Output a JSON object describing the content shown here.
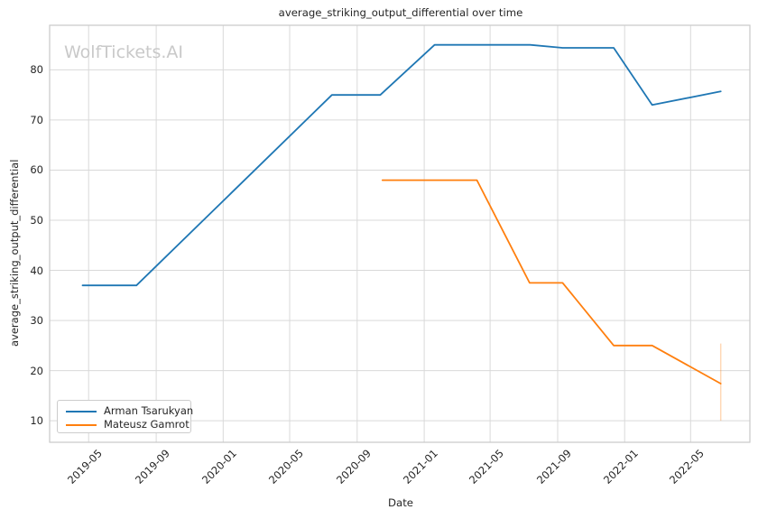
{
  "watermark": {
    "text": "WolfTickets.AI",
    "color": "#c9c9c9"
  },
  "chart_data": {
    "type": "line",
    "title": "average_striking_output_differential over time",
    "xlabel": "Date",
    "ylabel": "average_striking_output_differential",
    "grid": true,
    "legend_position": "lower left",
    "ylim": [
      5.7,
      88.9
    ],
    "y_ticks": [
      10,
      20,
      30,
      40,
      50,
      60,
      70,
      80
    ],
    "xlim": [
      "2019-02-19",
      "2022-08-17"
    ],
    "x_ticks": [
      {
        "label": "2019-05",
        "date": "2019-05-01"
      },
      {
        "label": "2019-09",
        "date": "2019-09-01"
      },
      {
        "label": "2020-01",
        "date": "2020-01-01"
      },
      {
        "label": "2020-05",
        "date": "2020-05-01"
      },
      {
        "label": "2020-09",
        "date": "2020-09-01"
      },
      {
        "label": "2021-01",
        "date": "2021-01-01"
      },
      {
        "label": "2021-05",
        "date": "2021-05-01"
      },
      {
        "label": "2021-09",
        "date": "2021-09-01"
      },
      {
        "label": "2022-01",
        "date": "2022-01-01"
      },
      {
        "label": "2022-05",
        "date": "2022-05-01"
      }
    ],
    "colors": {
      "grid": "#d9d9d9",
      "spine": "#c9c9c9",
      "text": "#262626"
    },
    "series": [
      {
        "name": "Arman Tsarukyan",
        "color": "#1f77b4",
        "points": [
          [
            "2019-04-20",
            37
          ],
          [
            "2019-07-27",
            37
          ],
          [
            "2020-07-17",
            75
          ],
          [
            "2020-10-13",
            75
          ],
          [
            "2021-01-20",
            85
          ],
          [
            "2021-07-13",
            85
          ],
          [
            "2021-09-10",
            84.4
          ],
          [
            "2021-12-12",
            84.4
          ],
          [
            "2022-02-20",
            73
          ],
          [
            "2022-06-25",
            75.7
          ]
        ]
      },
      {
        "name": "Mateusz Gamrot",
        "color": "#ff7f0e",
        "points": [
          [
            "2020-10-17",
            58
          ],
          [
            "2021-04-07",
            58
          ],
          [
            "2021-07-12",
            37.5
          ],
          [
            "2021-09-10",
            37.5
          ],
          [
            "2021-12-12",
            25
          ],
          [
            "2022-02-20",
            25
          ],
          [
            "2022-06-25",
            17.4
          ]
        ],
        "error_bar": {
          "date": "2022-06-25",
          "low": 10,
          "high": 25.4,
          "color": "rgba(255,127,14,0.3)"
        }
      }
    ]
  }
}
